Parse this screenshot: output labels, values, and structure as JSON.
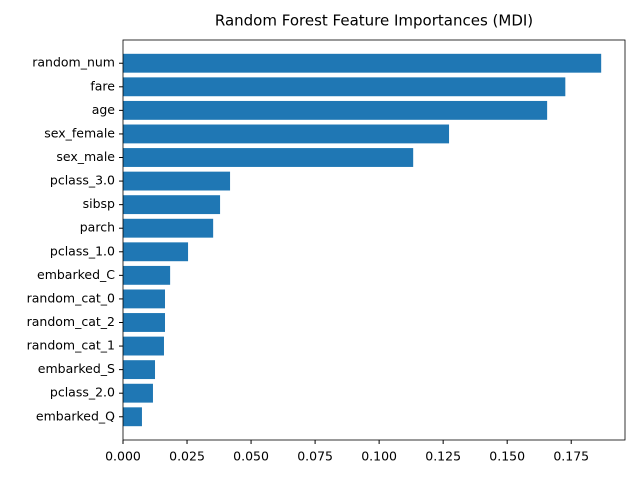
{
  "chart_data": {
    "type": "barh",
    "title": "Random Forest Feature Importances (MDI)",
    "categories": [
      "random_num",
      "fare",
      "age",
      "sex_female",
      "sex_male",
      "pclass_3.0",
      "sibsp",
      "parch",
      "pclass_1.0",
      "embarked_C",
      "random_cat_0",
      "random_cat_2",
      "random_cat_1",
      "embarked_S",
      "pclass_2.0",
      "embarked_Q"
    ],
    "values": [
      0.1867,
      0.1727,
      0.1656,
      0.1273,
      0.1133,
      0.0418,
      0.0379,
      0.0352,
      0.0254,
      0.0184,
      0.0164,
      0.0164,
      0.016,
      0.0125,
      0.0117,
      0.0074
    ],
    "color": "#1f77b4",
    "xlim": [
      0,
      0.196
    ],
    "xticks": [
      {
        "value": 0,
        "label": "0.000"
      },
      {
        "value": 0.025,
        "label": "0.025"
      },
      {
        "value": 0.05,
        "label": "0.050"
      },
      {
        "value": 0.075,
        "label": "0.075"
      },
      {
        "value": 0.1,
        "label": "0.100"
      },
      {
        "value": 0.125,
        "label": "0.125"
      },
      {
        "value": 0.15,
        "label": "0.150"
      },
      {
        "value": 0.175,
        "label": "0.175"
      }
    ],
    "grid": false
  }
}
